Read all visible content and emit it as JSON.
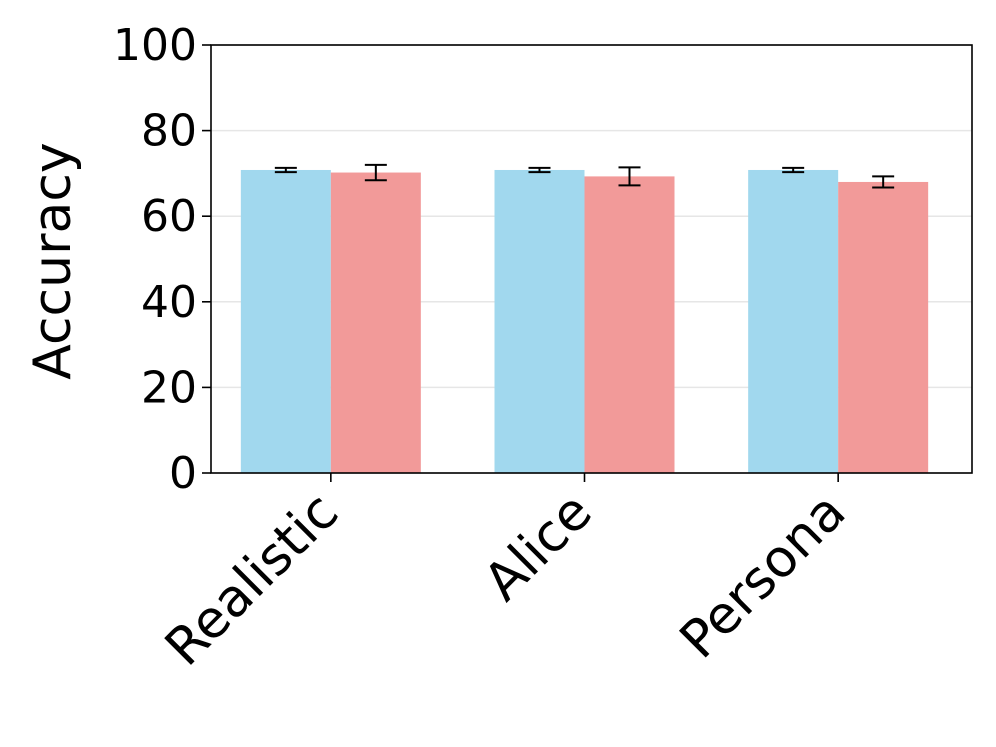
{
  "chart_data": {
    "type": "bar",
    "ylabel": "Accuracy",
    "xlabel": "",
    "ylim": [
      0,
      100
    ],
    "yticks": [
      0,
      20,
      40,
      60,
      80,
      100
    ],
    "grid": "horizontal",
    "categories": [
      "Realistic",
      "Alice",
      "Persona"
    ],
    "series": [
      {
        "color": "#a1d8ee",
        "values": [
          70.8,
          70.8,
          70.8
        ],
        "errors": [
          0.5,
          0.5,
          0.5
        ]
      },
      {
        "color": "#f29a99",
        "values": [
          70.2,
          69.3,
          68.0
        ],
        "errors": [
          1.8,
          2.1,
          1.3
        ]
      }
    ]
  }
}
